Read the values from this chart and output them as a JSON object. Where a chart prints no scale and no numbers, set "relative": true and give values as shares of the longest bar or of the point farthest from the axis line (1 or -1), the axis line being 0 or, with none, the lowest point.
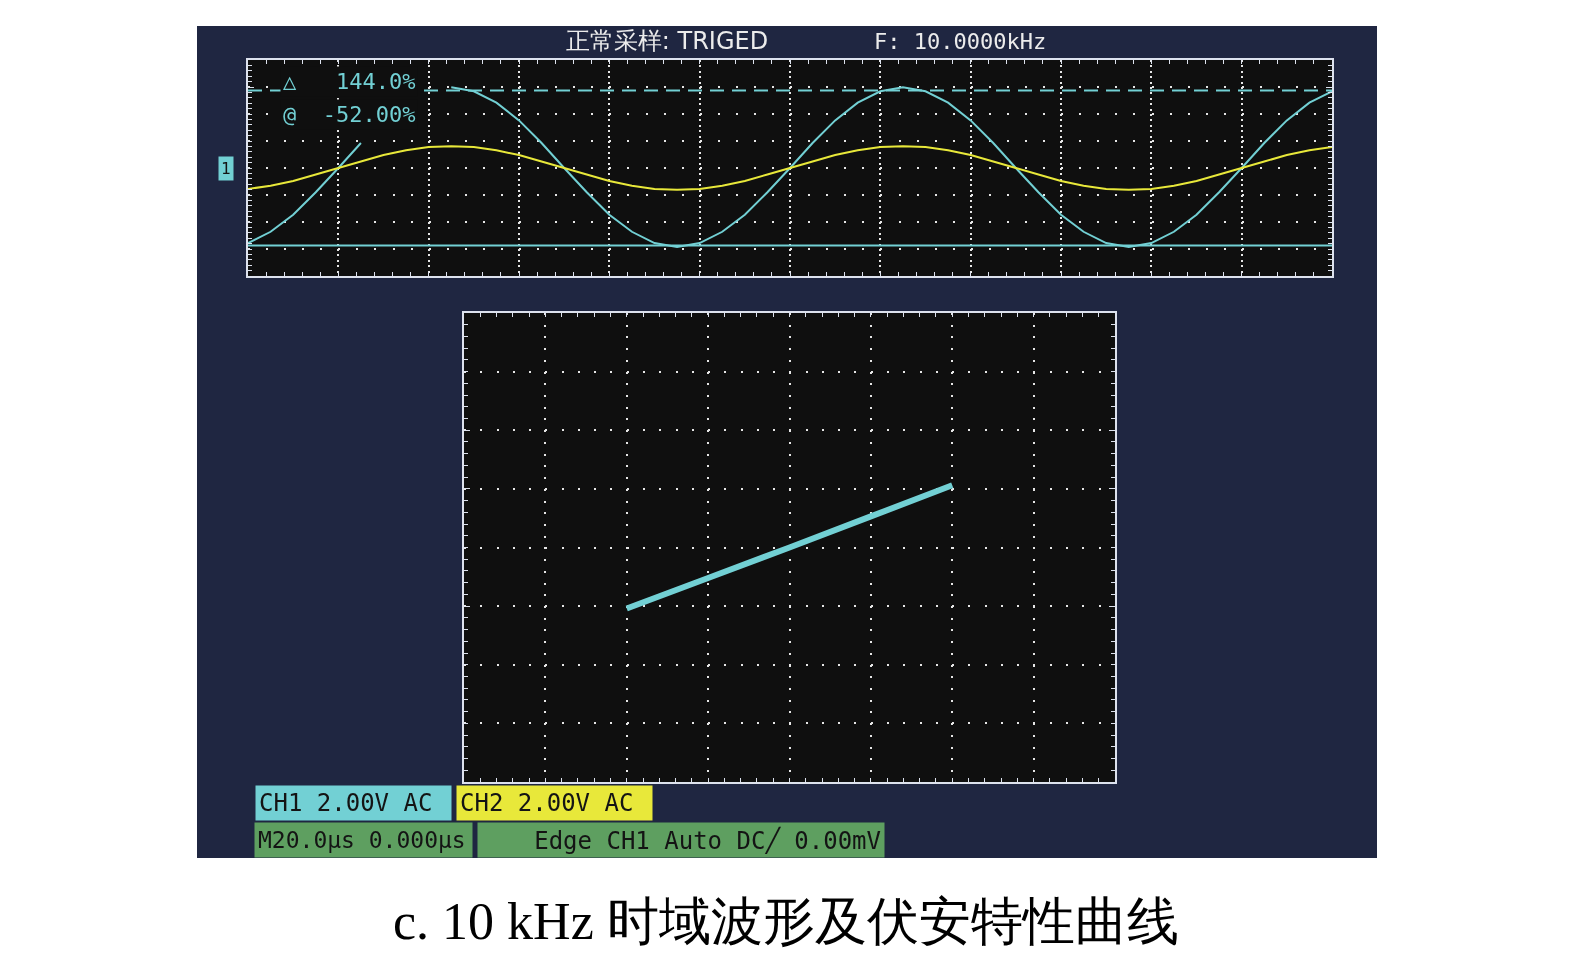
{
  "chart_data": [
    {
      "type": "line",
      "title": "正常采样: TRIGED",
      "relative": true,
      "grid": true,
      "legend": "bottom",
      "tick_labels": false,
      "categories": [
        null,
        null,
        null,
        null,
        null,
        null,
        null,
        null,
        null,
        null,
        null,
        null,
        null,
        null,
        null,
        null,
        null,
        null,
        null,
        null,
        null,
        null,
        null,
        null,
        null,
        null,
        null,
        null,
        null,
        null,
        null,
        null,
        null,
        null,
        null,
        null,
        null,
        null,
        null,
        null,
        null,
        null,
        null,
        null,
        null,
        null,
        null,
        null,
        null
      ],
      "series": [
        {
          "name": "CH1 2.00V AC",
          "color": "#72d0d4",
          "values": [
            -0.93,
            -0.79,
            -0.58,
            -0.3,
            0,
            0.31,
            null,
            null,
            null,
            1,
            0.95,
            0.81,
            0.59,
            0.31,
            0,
            -0.3,
            -0.58,
            -0.79,
            -0.93,
            -0.98,
            -0.93,
            -0.79,
            -0.58,
            -0.3,
            0,
            0.31,
            0.59,
            0.81,
            0.95,
            1,
            0.95,
            0.81,
            0.59,
            0.31,
            0,
            -0.3,
            -0.58,
            -0.79,
            -0.93,
            -0.98,
            -0.93,
            -0.79,
            -0.58,
            -0.3,
            0,
            0.31,
            0.59,
            0.81,
            0.95
          ]
        },
        {
          "name": "CH2 2.00V AC",
          "color": "#e8e83a",
          "values": [
            -0.26,
            -0.22,
            -0.16,
            -0.08,
            0,
            0.08,
            0.16,
            0.22,
            0.26,
            0.27,
            0.26,
            0.22,
            0.16,
            0.08,
            0,
            -0.08,
            -0.16,
            -0.22,
            -0.26,
            -0.27,
            -0.26,
            -0.22,
            -0.16,
            -0.08,
            0,
            0.08,
            0.16,
            0.22,
            0.26,
            0.27,
            0.26,
            0.22,
            0.16,
            0.08,
            0,
            -0.08,
            -0.16,
            -0.22,
            -0.26,
            -0.27,
            -0.26,
            -0.22,
            -0.16,
            -0.08,
            0,
            0.08,
            0.16,
            0.22,
            0.26
          ]
        }
      ],
      "ref_lines": [
        {
          "axis": "y",
          "value": 0.96,
          "color": "#72d0d4",
          "line_style": "dashed"
        },
        {
          "axis": "y",
          "value": -0.96,
          "color": "#72d0d4",
          "line_style": "solid"
        }
      ],
      "annotations": [
        "F: 10.0000kHz",
        "△   144.0%",
        "@  -52.00%",
        "1",
        "M20.0µs 0.000µs",
        "Edge CH1 Auto DC╱ 0.00mV"
      ]
    },
    {
      "type": "line",
      "relative": true,
      "grid": true,
      "tick_labels": false,
      "categories": [
        null,
        null,
        null,
        null,
        null,
        null,
        null,
        null,
        null
      ],
      "series": [
        {
          "color": "#72d0d4",
          "values": [
            null,
            null,
            -0.98,
            -0.49,
            0,
            0.5,
            1,
            null,
            null
          ]
        }
      ],
      "annotations": [
        "c. 10 kHz 时域波形及伏安特性曲线"
      ]
    }
  ]
}
